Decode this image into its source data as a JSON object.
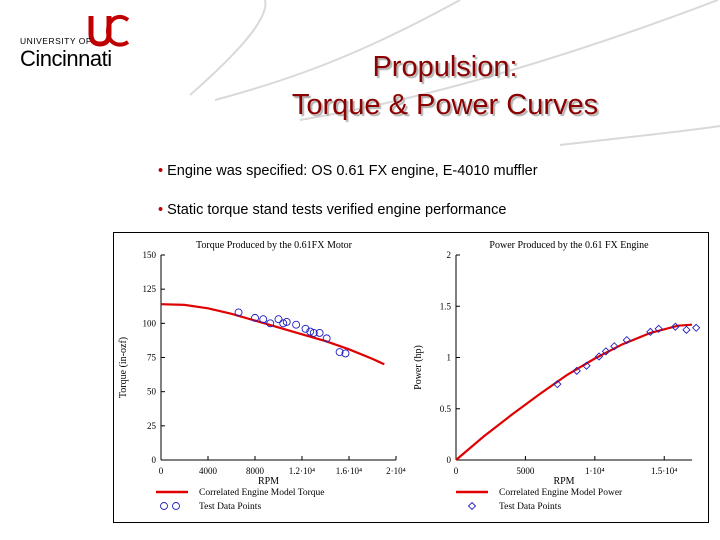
{
  "logo": {
    "line1": "UNIVERSITY OF",
    "line2": "Cincinnati",
    "mark_icon": "uc-monogram-icon",
    "colors": {
      "mark": "#c00000",
      "text": "#000000"
    }
  },
  "title": {
    "line1": "Propulsion:",
    "line2": "Torque & Power Curves",
    "color": "#8b0000"
  },
  "bullets": [
    "Engine was specified: OS 0.61 FX engine, E-4010 muffler",
    "Static torque stand tests verified engine performance"
  ],
  "bullet_color": "#c00000",
  "chart_data": [
    {
      "type": "line",
      "title": "Torque Produced by the 0.61FX Motor",
      "xlabel": "RPM",
      "ylabel": "Torque (in-ozf)",
      "xlim": [
        0,
        20000
      ],
      "ylim": [
        0,
        150
      ],
      "x_ticks": [
        0,
        4000,
        8000,
        12000,
        16000,
        20000
      ],
      "x_tick_labels": [
        "0",
        "4000",
        "8000",
        "1.2·10⁴",
        "1.6·10⁴",
        "2·10⁴"
      ],
      "y_ticks": [
        0,
        25,
        50,
        75,
        100,
        125,
        150
      ],
      "y_tick_labels": [
        "0",
        "25",
        "50",
        "75",
        "100",
        "125",
        "150"
      ],
      "grid": false,
      "legend": "bottom",
      "series": [
        {
          "name": "Correlated Engine Model Torque",
          "style": "line",
          "color": "#e00000",
          "x": [
            0,
            2000,
            4000,
            6000,
            8000,
            10000,
            12000,
            14000,
            16000,
            18000,
            19000
          ],
          "y": [
            114,
            113.5,
            111,
            107,
            102,
            97,
            92,
            87,
            81,
            74,
            70
          ]
        },
        {
          "name": "Test Data Points",
          "style": "markers",
          "color": "#2020c0",
          "x": [
            6600,
            8000,
            8700,
            9300,
            10000,
            10400,
            10700,
            11500,
            12300,
            12700,
            13000,
            13500,
            14100,
            15200,
            15700
          ],
          "y": [
            108,
            104,
            103,
            100,
            103,
            100,
            101,
            99,
            96,
            94,
            93,
            93,
            89,
            79,
            78
          ]
        }
      ]
    },
    {
      "type": "line",
      "title": "Power Produced by the 0.61 FX Engine",
      "xlabel": "RPM",
      "ylabel": "Power (hp)",
      "xlim": [
        0,
        17000
      ],
      "ylim": [
        0,
        2
      ],
      "x_ticks": [
        0,
        5000,
        10000,
        15000
      ],
      "x_tick_labels": [
        "0",
        "5000",
        "1·10⁴",
        "1.5·10⁴"
      ],
      "y_ticks": [
        0,
        0.5,
        1,
        1.5,
        2
      ],
      "y_tick_labels": [
        "0",
        "0.5",
        "1",
        "1.5",
        "2"
      ],
      "grid": false,
      "legend": "bottom",
      "series": [
        {
          "name": "Correlated Engine Model Power",
          "style": "line",
          "color": "#e00000",
          "x": [
            0,
            2000,
            4000,
            6000,
            8000,
            10000,
            12000,
            14000,
            16000,
            17000
          ],
          "y": [
            0,
            0.23,
            0.44,
            0.64,
            0.83,
            0.99,
            1.13,
            1.24,
            1.31,
            1.32
          ]
        },
        {
          "name": "Test Data Points",
          "style": "markers",
          "color": "#2020c0",
          "x": [
            7300,
            8700,
            9400,
            10300,
            10800,
            11400,
            12300,
            14000,
            14600,
            15800,
            16600,
            17300
          ],
          "y": [
            0.74,
            0.87,
            0.92,
            1.01,
            1.06,
            1.11,
            1.17,
            1.25,
            1.28,
            1.3,
            1.27,
            1.29
          ]
        }
      ]
    }
  ]
}
